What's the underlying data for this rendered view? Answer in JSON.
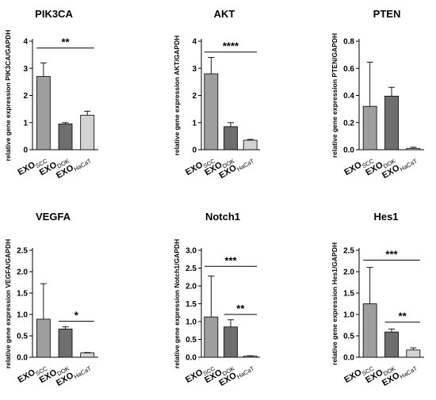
{
  "chart_data": [
    {
      "type": "bar",
      "title": "PIK3CA",
      "ylabel": "relative gene expression PIK3CA/GAPDH",
      "ylim": [
        0,
        4
      ],
      "yticks": [
        "0",
        "1",
        "2",
        "3",
        "4"
      ],
      "categories": [
        {
          "base": "EXO",
          "sub": "SCC"
        },
        {
          "base": "EXO",
          "sub": "DOK"
        },
        {
          "base": "EXO",
          "sub": "HaCaT"
        }
      ],
      "values": [
        2.7,
        0.95,
        1.27
      ],
      "errors": [
        0.5,
        0.05,
        0.15
      ],
      "colors": [
        "#9e9e9e",
        "#6e6e6e",
        "#d3d3d3"
      ],
      "significance": [
        {
          "from": 0,
          "to": 2,
          "label": "**",
          "y": 3.75
        }
      ]
    },
    {
      "type": "bar",
      "title": "AKT",
      "ylabel": "relative gene expression AKT/GAPDH",
      "ylim": [
        0,
        4
      ],
      "yticks": [
        "0",
        "1",
        "2",
        "3",
        "4"
      ],
      "categories": [
        {
          "base": "EXO",
          "sub": "SCC"
        },
        {
          "base": "EXO",
          "sub": "DOK"
        },
        {
          "base": "EXO",
          "sub": "HaCaT"
        }
      ],
      "values": [
        2.8,
        0.85,
        0.35
      ],
      "errors": [
        0.6,
        0.15,
        0.03
      ],
      "colors": [
        "#9e9e9e",
        "#6e6e6e",
        "#d3d3d3"
      ],
      "significance": [
        {
          "from": 0,
          "to": 2,
          "label": "****",
          "y": 3.6
        }
      ]
    },
    {
      "type": "bar",
      "title": "PTEN",
      "ylabel": "relative gene expression PTEN/GAPDH",
      "ylim": [
        0,
        0.8
      ],
      "yticks": [
        "0.0",
        "0.2",
        "0.4",
        "0.6",
        "0.8"
      ],
      "categories": [
        {
          "base": "EXO",
          "sub": "SCC"
        },
        {
          "base": "EXO",
          "sub": "DOK"
        },
        {
          "base": "EXO",
          "sub": "HaCaT"
        }
      ],
      "values": [
        0.32,
        0.395,
        0.01
      ],
      "errors": [
        0.325,
        0.065,
        0.008
      ],
      "colors": [
        "#9e9e9e",
        "#6e6e6e",
        "#d3d3d3"
      ],
      "significance": []
    },
    {
      "type": "bar",
      "title": "VEGFA",
      "ylabel": "relative gene expression VEGFA/GAPDH",
      "ylim": [
        0,
        2.5
      ],
      "yticks": [
        "0.0",
        "0.5",
        "1.0",
        "1.5",
        "2.0",
        "2.5"
      ],
      "categories": [
        {
          "base": "EXO",
          "sub": "SCC"
        },
        {
          "base": "EXO",
          "sub": "DOK"
        },
        {
          "base": "EXO",
          "sub": "HaCaT"
        }
      ],
      "values": [
        0.89,
        0.66,
        0.1
      ],
      "errors": [
        0.83,
        0.05,
        0.01
      ],
      "colors": [
        "#9e9e9e",
        "#6e6e6e",
        "#d3d3d3"
      ],
      "significance": [
        {
          "from": 1,
          "to": 2,
          "label": "*",
          "y": 0.84
        }
      ]
    },
    {
      "type": "bar",
      "title": "Notch1",
      "ylabel": "relative gene expression Notch1/GAPDH",
      "ylim": [
        0,
        3
      ],
      "yticks": [
        "0.0",
        "0.5",
        "1.0",
        "1.5",
        "2.0",
        "2.5",
        "3.0"
      ],
      "categories": [
        {
          "base": "EXO",
          "sub": "SCC"
        },
        {
          "base": "EXO",
          "sub": "DOK"
        },
        {
          "base": "EXO",
          "sub": "HaCaT"
        }
      ],
      "values": [
        1.13,
        0.85,
        0.03
      ],
      "errors": [
        1.15,
        0.2,
        0.01
      ],
      "colors": [
        "#9e9e9e",
        "#6e6e6e",
        "#d3d3d3"
      ],
      "significance": [
        {
          "from": 0,
          "to": 2,
          "label": "***",
          "y": 2.55
        },
        {
          "from": 1,
          "to": 2,
          "label": "**",
          "y": 1.2
        }
      ]
    },
    {
      "type": "bar",
      "title": "Hes1",
      "ylabel": "relative gene expression Hes1/GAPDH",
      "ylim": [
        0,
        2.5
      ],
      "yticks": [
        "0.0",
        "0.5",
        "1.0",
        "1.5",
        "2.0",
        "2.5"
      ],
      "categories": [
        {
          "base": "EXO",
          "sub": "SCC"
        },
        {
          "base": "EXO",
          "sub": "DOK"
        },
        {
          "base": "EXO",
          "sub": "HaCaT"
        }
      ],
      "values": [
        1.25,
        0.59,
        0.17
      ],
      "errors": [
        0.85,
        0.07,
        0.05
      ],
      "colors": [
        "#9e9e9e",
        "#6e6e6e",
        "#d3d3d3"
      ],
      "significance": [
        {
          "from": 0,
          "to": 2,
          "label": "***",
          "y": 2.27
        },
        {
          "from": 1,
          "to": 2,
          "label": "**",
          "y": 0.82
        }
      ]
    }
  ]
}
